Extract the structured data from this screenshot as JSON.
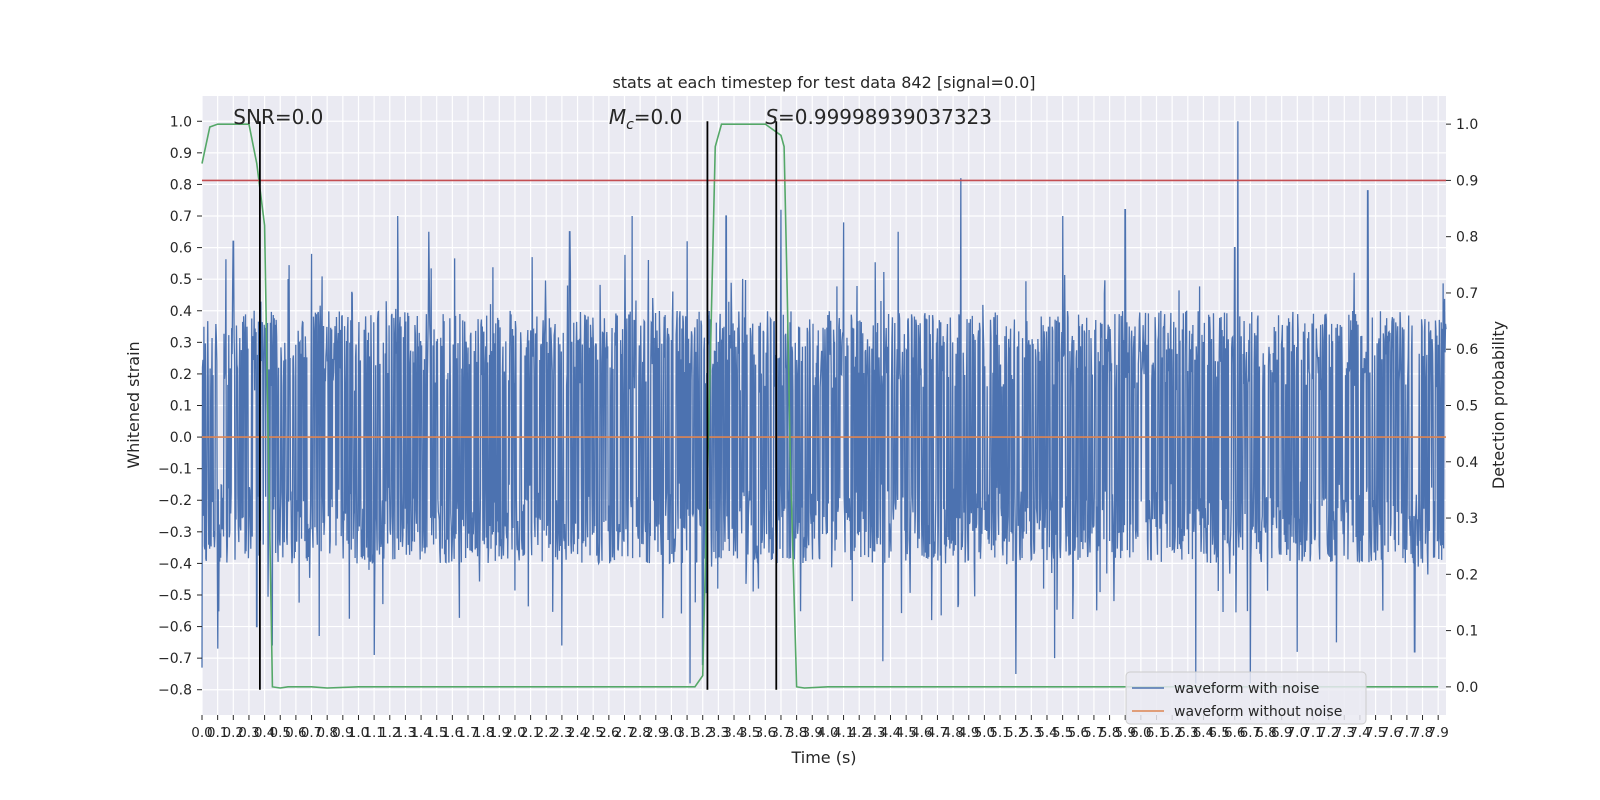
{
  "chart_data": {
    "type": "line",
    "title": "stats at each timestep for test data 842 [signal=0.0]",
    "xlabel": "Time (s)",
    "ylabel": "Whitened strain",
    "y2label": "Detection probability",
    "xlim": [
      0.0,
      7.95
    ],
    "ylim": [
      -0.88,
      1.08
    ],
    "y2lim": [
      -0.05,
      1.05
    ],
    "x_ticks": [
      0.0,
      0.1,
      0.2,
      0.3,
      0.4,
      0.5,
      0.6,
      0.7,
      0.8,
      0.9,
      1.0,
      1.1,
      1.2,
      1.3,
      1.4,
      1.5,
      1.6,
      1.7,
      1.8,
      1.9,
      2.0,
      2.1,
      2.2,
      2.3,
      2.4,
      2.5,
      2.6,
      2.7,
      2.8,
      2.9,
      3.0,
      3.1,
      3.2,
      3.3,
      3.4,
      3.5,
      3.6,
      3.7,
      3.8,
      3.9,
      4.0,
      4.1,
      4.2,
      4.3,
      4.4,
      4.5,
      4.6,
      4.7,
      4.8,
      4.9,
      5.0,
      5.1,
      5.2,
      5.3,
      5.4,
      5.5,
      5.6,
      5.7,
      5.8,
      5.9,
      6.0,
      6.1,
      6.2,
      6.3,
      6.4,
      6.5,
      6.6,
      6.7,
      6.8,
      6.9,
      7.0,
      7.1,
      7.2,
      7.3,
      7.4,
      7.5,
      7.6,
      7.7,
      7.8,
      7.9
    ],
    "x_tick_labels": [
      "0.0",
      "0.1",
      "0.2",
      "0.3",
      "0.4",
      "0.5",
      "0.6",
      "0.7",
      "0.8",
      "0.9",
      "1.0",
      "1.1",
      "1.2",
      "1.3",
      "1.4",
      "1.5",
      "1.6",
      "1.7",
      "1.8",
      "1.9",
      "2.0",
      "2.1",
      "2.2",
      "2.3",
      "2.4",
      "2.5",
      "2.6",
      "2.7",
      "2.8",
      "2.9",
      "3.0",
      "3.1",
      "3.2",
      "3.3",
      "3.4",
      "3.5",
      "3.6",
      "3.7",
      "3.8",
      "3.9",
      "4.0",
      "4.1",
      "4.2",
      "4.3",
      "4.4",
      "4.5",
      "4.6",
      "4.7",
      "4.8",
      "4.9",
      "5.0",
      "5.1",
      "5.2",
      "5.3",
      "5.4",
      "5.5",
      "5.6",
      "5.7",
      "5.8",
      "5.9",
      "6.0",
      "6.1",
      "6.2",
      "6.3",
      "6.4",
      "6.5",
      "6.6",
      "6.7",
      "6.8",
      "6.9",
      "7.0",
      "7.1",
      "7.2",
      "7.3",
      "7.4",
      "7.5",
      "7.6",
      "7.7",
      "7.8",
      "7.9"
    ],
    "y_ticks": [
      -0.8,
      -0.7,
      -0.6,
      -0.5,
      -0.4,
      -0.3,
      -0.2,
      -0.1,
      0.0,
      0.1,
      0.2,
      0.3,
      0.4,
      0.5,
      0.6,
      0.7,
      0.8,
      0.9,
      1.0
    ],
    "y_tick_labels": [
      "−0.8",
      "−0.7",
      "−0.6",
      "−0.5",
      "−0.4",
      "−0.3",
      "−0.2",
      "−0.1",
      "0.0",
      "0.1",
      "0.2",
      "0.3",
      "0.4",
      "0.5",
      "0.6",
      "0.7",
      "0.8",
      "0.9",
      "1.0"
    ],
    "y2_ticks": [
      0.0,
      0.1,
      0.2,
      0.3,
      0.4,
      0.5,
      0.6,
      0.7,
      0.8,
      0.9,
      1.0
    ],
    "y2_tick_labels": [
      "0.0",
      "0.1",
      "0.2",
      "0.3",
      "0.4",
      "0.5",
      "0.6",
      "0.7",
      "0.8",
      "0.9",
      "1.0"
    ],
    "grid": true,
    "series": [
      {
        "name": "waveform with noise",
        "color": "#4c72b0",
        "axis": "left",
        "note_style": "dense noise",
        "envelope_upper": 0.4,
        "envelope_lower": -0.4,
        "max_value": 1.0,
        "min_value": -0.78,
        "peaks": [
          [
            0.0,
            0.55
          ],
          [
            0.2,
            0.62
          ],
          [
            0.35,
            0.72
          ],
          [
            0.45,
            0.76
          ],
          [
            0.7,
            0.58
          ],
          [
            1.25,
            0.7
          ],
          [
            1.45,
            0.65
          ],
          [
            2.35,
            0.65
          ],
          [
            2.75,
            0.7
          ],
          [
            3.1,
            0.62
          ],
          [
            3.35,
            0.7
          ],
          [
            3.7,
            0.72
          ],
          [
            4.1,
            0.68
          ],
          [
            4.45,
            0.65
          ],
          [
            4.85,
            0.82
          ],
          [
            5.5,
            0.7
          ],
          [
            5.9,
            0.72
          ],
          [
            6.6,
            0.6
          ],
          [
            6.62,
            1.0
          ],
          [
            7.25,
            0.78
          ],
          [
            7.45,
            0.78
          ]
        ],
        "troughs": [
          [
            0.0,
            -0.73
          ],
          [
            0.1,
            -0.67
          ],
          [
            0.35,
            -0.6
          ],
          [
            0.45,
            -0.66
          ],
          [
            0.75,
            -0.63
          ],
          [
            1.1,
            -0.69
          ],
          [
            2.3,
            -0.66
          ],
          [
            3.12,
            -0.78
          ],
          [
            3.2,
            -0.72
          ],
          [
            4.35,
            -0.71
          ],
          [
            5.2,
            -0.75
          ],
          [
            5.45,
            -0.7
          ],
          [
            6.35,
            -0.78
          ],
          [
            6.7,
            -0.78
          ],
          [
            7.0,
            -0.68
          ],
          [
            7.25,
            -0.65
          ],
          [
            7.75,
            -0.68
          ]
        ]
      },
      {
        "name": "waveform without noise",
        "color": "#dd8452",
        "axis": "left",
        "x": [
          0.0,
          7.95
        ],
        "y": [
          0.0,
          0.0
        ]
      },
      {
        "name": "",
        "color": "#55a868",
        "axis": "right",
        "x": [
          0.0,
          0.05,
          0.1,
          0.2,
          0.3,
          0.35,
          0.4,
          0.45,
          0.5,
          0.55,
          0.6,
          0.7,
          0.8,
          1.0,
          2.0,
          3.0,
          3.15,
          3.2,
          3.25,
          3.28,
          3.32,
          3.35,
          3.4,
          3.5,
          3.6,
          3.7,
          3.72,
          3.74,
          3.76,
          3.78,
          3.8,
          3.85,
          4.0,
          5.0,
          6.0,
          7.0,
          7.9
        ],
        "y": [
          0.93,
          0.995,
          1.0,
          1.0,
          1.0,
          0.93,
          0.82,
          0.0,
          -0.002,
          0.0,
          0.0,
          0.0,
          -0.002,
          0.0,
          0.0,
          0.0,
          0.0,
          0.02,
          0.6,
          0.96,
          1.0,
          1.0,
          1.0,
          1.0,
          1.0,
          0.98,
          0.96,
          0.7,
          0.4,
          0.2,
          0.0,
          -0.002,
          0.0,
          0.0,
          0.0,
          0.0,
          0.0
        ]
      },
      {
        "name": "",
        "color": "#c44e52",
        "axis": "right",
        "x": [
          0.0,
          7.95
        ],
        "y": [
          0.9,
          0.9
        ]
      }
    ],
    "vlines": [
      0.37,
      3.23,
      3.67
    ],
    "annotations": [
      {
        "text": "SNR=0.0",
        "x": 0.2
      },
      {
        "math_symbol": "M",
        "math_sub": "c",
        "text": "=0.0",
        "x": 2.6
      },
      {
        "math_symbol": "S",
        "text": "=0.99998939037323",
        "x": 3.6
      }
    ],
    "legend": {
      "placement": "bottom-right",
      "entries": [
        "waveform with noise",
        "waveform without noise"
      ]
    }
  }
}
